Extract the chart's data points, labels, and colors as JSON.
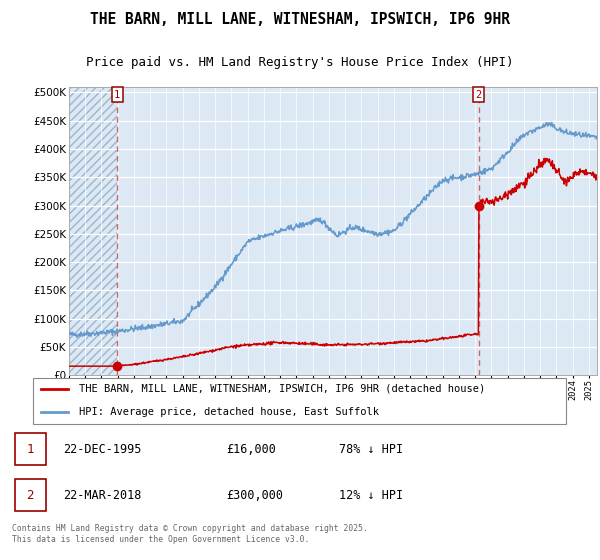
{
  "title": "THE BARN, MILL LANE, WITNESHAM, IPSWICH, IP6 9HR",
  "subtitle": "Price paid vs. HM Land Registry's House Price Index (HPI)",
  "legend_label_red": "THE BARN, MILL LANE, WITNESHAM, IPSWICH, IP6 9HR (detached house)",
  "legend_label_blue": "HPI: Average price, detached house, East Suffolk",
  "annotation1_date": "22-DEC-1995",
  "annotation1_price": "£16,000",
  "annotation1_hpi": "78% ↓ HPI",
  "annotation2_date": "22-MAR-2018",
  "annotation2_price": "£300,000",
  "annotation2_hpi": "12% ↓ HPI",
  "footnote": "Contains HM Land Registry data © Crown copyright and database right 2025.\nThis data is licensed under the Open Government Licence v3.0.",
  "plot_bg_color": "#dce9f5",
  "red_color": "#cc0000",
  "blue_color": "#6699cc",
  "grid_color": "#c8d8e8",
  "white_grid": "#ffffff",
  "vline_color": "#cc6666",
  "ylim": [
    0,
    510000
  ],
  "yticks": [
    0,
    50000,
    100000,
    150000,
    200000,
    250000,
    300000,
    350000,
    400000,
    450000,
    500000
  ],
  "sale1_x": 1995.97,
  "sale1_y": 16000,
  "sale2_x": 2018.22,
  "sale2_y": 300000,
  "xmin": 1993.0,
  "xmax": 2025.5,
  "title_fontsize": 10.5,
  "subtitle_fontsize": 9
}
